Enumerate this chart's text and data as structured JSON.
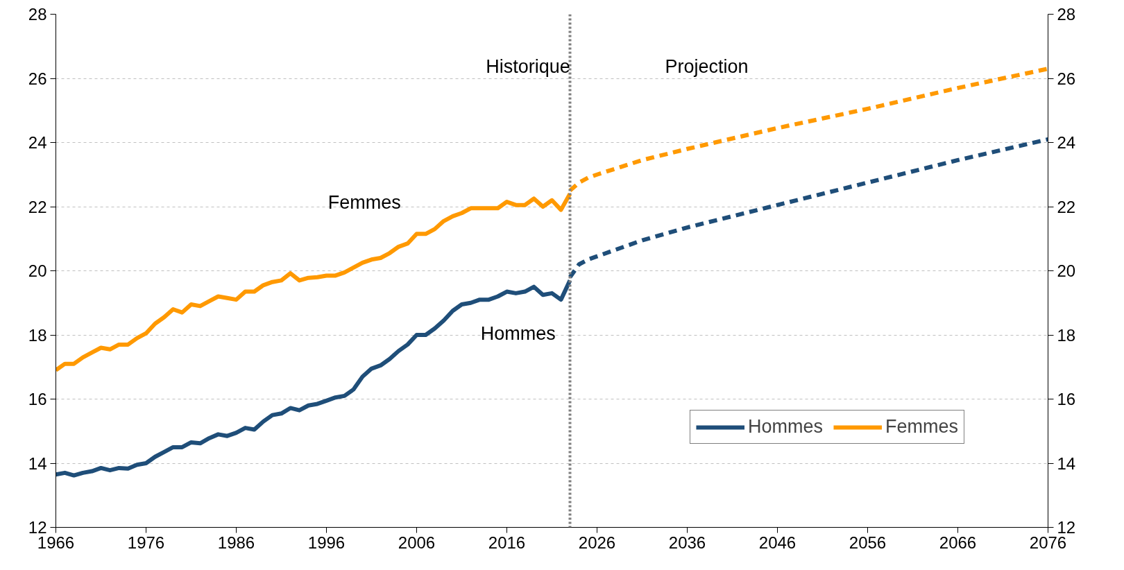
{
  "chart_data": {
    "type": "line",
    "xlim": [
      1966,
      2076
    ],
    "xticks": [
      1966,
      1976,
      1986,
      1996,
      2006,
      2016,
      2026,
      2036,
      2046,
      2056,
      2066,
      2076
    ],
    "ylim": [
      12,
      28
    ],
    "yticks": [
      12,
      14,
      16,
      18,
      20,
      22,
      24,
      26,
      28
    ],
    "y2lim": [
      12,
      28
    ],
    "y2ticks": [
      12,
      14,
      16,
      18,
      20,
      22,
      24,
      26,
      28
    ],
    "grid": "y",
    "legend": "bottom right",
    "line_style": "solid",
    "x": [
      1966,
      1967,
      1968,
      1969,
      1970,
      1971,
      1972,
      1973,
      1974,
      1975,
      1976,
      1977,
      1978,
      1979,
      1980,
      1981,
      1982,
      1983,
      1984,
      1985,
      1986,
      1987,
      1988,
      1989,
      1990,
      1991,
      1992,
      1993,
      1994,
      1995,
      1996,
      1997,
      1998,
      1999,
      2000,
      2001,
      2002,
      2003,
      2004,
      2005,
      2006,
      2007,
      2008,
      2009,
      2010,
      2011,
      2012,
      2013,
      2014,
      2015,
      2016,
      2017,
      2018,
      2019,
      2020,
      2021,
      2022,
      2023
    ],
    "series": [
      {
        "name": "Hommes",
        "color": "#1f4e79",
        "values": [
          13.65,
          13.7,
          13.62,
          13.7,
          13.75,
          13.85,
          13.78,
          13.85,
          13.83,
          13.95,
          14.0,
          14.2,
          14.35,
          14.5,
          14.5,
          14.65,
          14.62,
          14.78,
          14.9,
          14.85,
          14.95,
          15.1,
          15.05,
          15.3,
          15.5,
          15.55,
          15.72,
          15.65,
          15.8,
          15.85,
          15.95,
          16.05,
          16.1,
          16.3,
          16.7,
          16.95,
          17.05,
          17.25,
          17.5,
          17.7,
          18.0,
          18.0,
          18.2,
          18.45,
          18.75,
          18.95,
          19.0,
          19.1,
          19.1,
          19.2,
          19.35,
          19.3,
          19.35,
          19.5,
          19.25,
          19.3,
          19.1,
          19.7
        ]
      },
      {
        "name": "Femmes",
        "color": "#ff9900",
        "values": [
          16.9,
          17.1,
          17.1,
          17.3,
          17.45,
          17.6,
          17.55,
          17.7,
          17.7,
          17.9,
          18.05,
          18.35,
          18.55,
          18.8,
          18.7,
          18.95,
          18.9,
          19.05,
          19.2,
          19.15,
          19.1,
          19.35,
          19.35,
          19.55,
          19.65,
          19.7,
          19.92,
          19.7,
          19.78,
          19.8,
          19.85,
          19.85,
          19.95,
          20.1,
          20.25,
          20.35,
          20.4,
          20.55,
          20.75,
          20.85,
          21.15,
          21.15,
          21.3,
          21.55,
          21.7,
          21.8,
          21.95,
          21.95,
          21.95,
          21.95,
          22.15,
          22.05,
          22.05,
          22.25,
          22.0,
          22.2,
          21.9,
          22.4
        ]
      },
      {
        "color": "#1f4e79",
        "line_style": "dashed",
        "x": [
          2023,
          2024,
          2025,
          2026,
          2031,
          2036,
          2046,
          2056,
          2066,
          2076
        ],
        "values": [
          19.8,
          20.2,
          20.35,
          20.45,
          20.95,
          21.35,
          22.05,
          22.75,
          23.45,
          24.1
        ]
      },
      {
        "color": "#ff9900",
        "line_style": "dashed",
        "x": [
          2023,
          2024,
          2025,
          2026,
          2031,
          2036,
          2046,
          2056,
          2066,
          2076
        ],
        "values": [
          22.5,
          22.75,
          22.9,
          23.0,
          23.45,
          23.8,
          24.45,
          25.05,
          25.7,
          26.3
        ]
      }
    ],
    "ref_lines": [
      {
        "axis": "x",
        "value": 2023,
        "color": "#7f7f7f",
        "line_style": "dotted"
      }
    ],
    "annotations": [
      "Historique",
      "Projection",
      "Femmes",
      "Hommes"
    ]
  }
}
